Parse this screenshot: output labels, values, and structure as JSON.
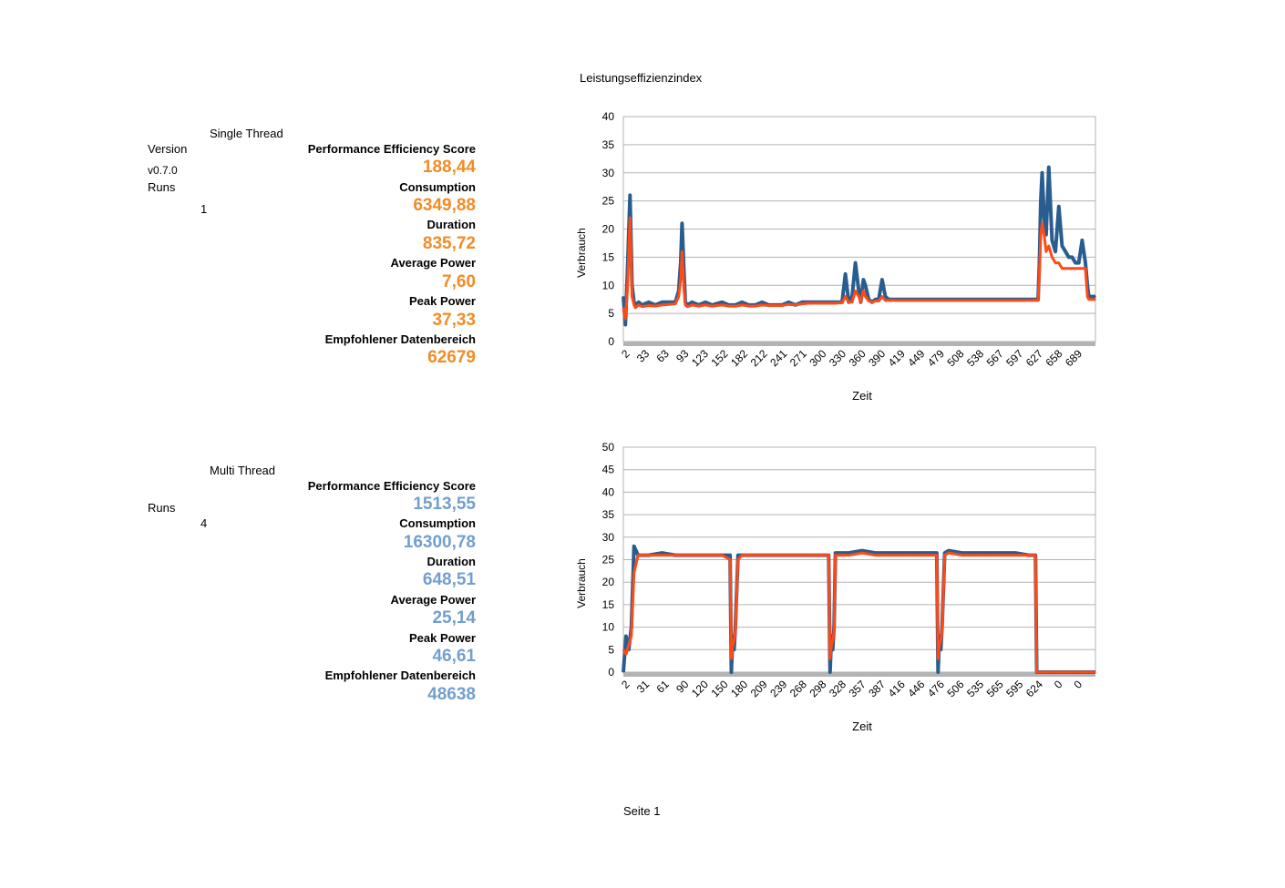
{
  "page_title": "Leistungseffizienzindex",
  "footer": "Seite 1",
  "colors": {
    "single_thread_value": "#f28c25",
    "multi_thread_value": "#729fcf",
    "raw_series": "#2a5d8f",
    "avg_series": "#ff4a16"
  },
  "single": {
    "title": "Single Thread",
    "version_label": "Version",
    "version_value": "v0.7.0",
    "runs_label": "Runs",
    "runs_value": "1",
    "metrics": [
      {
        "label": "Performance Efficiency Score",
        "value": "188,44"
      },
      {
        "label": "Consumption",
        "value": "6349,88"
      },
      {
        "label": "Duration",
        "value": "835,72"
      },
      {
        "label": "Average Power",
        "value": "7,60"
      },
      {
        "label": "Peak Power",
        "value": "37,33"
      },
      {
        "label": "Empfohlener Datenbereich",
        "value": "62679"
      }
    ]
  },
  "multi": {
    "title": "Multi Thread",
    "runs_label": "Runs",
    "runs_value": "4",
    "metrics": [
      {
        "label": "Performance Efficiency Score",
        "value": "1513,55"
      },
      {
        "label": "Consumption",
        "value": "16300,78"
      },
      {
        "label": "Duration",
        "value": "648,51"
      },
      {
        "label": "Average Power",
        "value": "25,14"
      },
      {
        "label": "Peak Power",
        "value": "46,61"
      },
      {
        "label": "Empfohlener Datenbereich",
        "value": "48638"
      }
    ]
  },
  "chart_data": [
    {
      "type": "line",
      "xlabel": "Zeit",
      "ylabel": "Verbrauch",
      "ylim": [
        0,
        40
      ],
      "yticks": [
        0,
        5,
        10,
        15,
        20,
        25,
        30,
        35,
        40
      ],
      "categories": [
        "2",
        "33",
        "63",
        "93",
        "123",
        "152",
        "182",
        "212",
        "241",
        "271",
        "300",
        "330",
        "360",
        "390",
        "419",
        "449",
        "479",
        "508",
        "538",
        "567",
        "597",
        "627",
        "658",
        "689"
      ],
      "x_range": [
        2,
        710
      ],
      "grid": true,
      "series": [
        {
          "x": [
            2,
            5,
            8,
            12,
            15,
            18,
            20,
            25,
            30,
            40,
            50,
            60,
            70,
            80,
            85,
            88,
            90,
            93,
            95,
            98,
            105,
            115,
            125,
            135,
            150,
            160,
            170,
            180,
            190,
            200,
            210,
            220,
            230,
            240,
            250,
            260,
            270,
            280,
            290,
            300,
            310,
            320,
            330,
            335,
            340,
            345,
            350,
            355,
            358,
            362,
            365,
            370,
            375,
            380,
            385,
            390,
            395,
            400,
            420,
            440,
            460,
            480,
            500,
            520,
            540,
            560,
            580,
            600,
            620,
            624,
            626,
            628,
            630,
            633,
            636,
            640,
            645,
            650,
            655,
            660,
            665,
            670,
            675,
            680,
            685,
            690,
            695,
            698,
            700,
            705,
            710
          ],
          "values": [
            8,
            3,
            12,
            26,
            10,
            7,
            6.5,
            7,
            6.5,
            7,
            6.5,
            7,
            7,
            7,
            9,
            14,
            21,
            12,
            7,
            6.5,
            7,
            6.5,
            7,
            6.5,
            7,
            6.5,
            6.5,
            7,
            6.5,
            6.5,
            7,
            6.5,
            6.5,
            6.5,
            7,
            6.5,
            7,
            7,
            7,
            7,
            7,
            7,
            7,
            12,
            7,
            8,
            14,
            9,
            7,
            11,
            10,
            7.5,
            7,
            7.5,
            7.5,
            11,
            8,
            7.5,
            7.5,
            7.5,
            7.5,
            7.5,
            7.5,
            7.5,
            7.5,
            7.5,
            7.5,
            7.5,
            7.5,
            7.5,
            14,
            25,
            30,
            22,
            19,
            31,
            18,
            16,
            24,
            17,
            16,
            15,
            15,
            14,
            14,
            18,
            14,
            10,
            8,
            8,
            8
          ]
        },
        {
          "x": [
            2,
            5,
            8,
            12,
            15,
            18,
            20,
            25,
            30,
            40,
            50,
            60,
            70,
            80,
            85,
            88,
            90,
            93,
            95,
            98,
            105,
            115,
            125,
            135,
            150,
            160,
            170,
            180,
            190,
            200,
            210,
            220,
            230,
            240,
            250,
            260,
            270,
            280,
            290,
            300,
            310,
            320,
            330,
            335,
            340,
            345,
            350,
            355,
            358,
            362,
            365,
            370,
            375,
            380,
            385,
            390,
            395,
            400,
            420,
            440,
            460,
            480,
            500,
            520,
            540,
            560,
            580,
            600,
            620,
            624,
            626,
            628,
            630,
            633,
            636,
            640,
            645,
            650,
            655,
            660,
            665,
            670,
            675,
            680,
            685,
            690,
            695,
            698,
            700,
            705,
            710
          ],
          "values": [
            6,
            4,
            9,
            22,
            8,
            6.5,
            6,
            6.5,
            6.2,
            6.4,
            6.3,
            6.5,
            6.6,
            6.7,
            8,
            11,
            16,
            9,
            6.5,
            6.2,
            6.5,
            6.3,
            6.5,
            6.3,
            6.5,
            6.3,
            6.3,
            6.5,
            6.3,
            6.3,
            6.5,
            6.4,
            6.4,
            6.4,
            6.6,
            6.5,
            6.7,
            6.8,
            6.8,
            6.8,
            6.8,
            6.8,
            6.9,
            8,
            7,
            7,
            9,
            8,
            7,
            9,
            8,
            7.2,
            7,
            7.2,
            7.2,
            8,
            7.3,
            7.3,
            7.3,
            7.3,
            7.3,
            7.3,
            7.3,
            7.3,
            7.3,
            7.3,
            7.3,
            7.3,
            7.3,
            7.3,
            12,
            19,
            21,
            19,
            16,
            17,
            15,
            14,
            14,
            13,
            13,
            13,
            13,
            13,
            13,
            13,
            13,
            8,
            7.5,
            7.5,
            7.5
          ]
        }
      ]
    },
    {
      "type": "line",
      "xlabel": "Zeit",
      "ylabel": "Verbrauch",
      "ylim": [
        0,
        50
      ],
      "yticks": [
        0,
        5,
        10,
        15,
        20,
        25,
        30,
        35,
        40,
        45,
        50
      ],
      "categories": [
        "2",
        "31",
        "61",
        "90",
        "120",
        "150",
        "180",
        "209",
        "239",
        "268",
        "298",
        "328",
        "357",
        "387",
        "416",
        "446",
        "476",
        "506",
        "535",
        "565",
        "595",
        "624",
        "0",
        "0"
      ],
      "x_range": [
        2,
        710
      ],
      "grid": true,
      "series": [
        {
          "x": [
            2,
            6,
            10,
            14,
            18,
            24,
            40,
            60,
            80,
            100,
            120,
            140,
            150,
            162,
            164,
            166,
            168,
            170,
            174,
            180,
            200,
            220,
            240,
            260,
            280,
            300,
            310,
            312,
            314,
            316,
            318,
            320,
            326,
            340,
            360,
            380,
            400,
            420,
            440,
            460,
            472,
            474,
            476,
            478,
            480,
            484,
            490,
            510,
            530,
            550,
            570,
            590,
            610,
            620,
            622,
            624,
            650,
            680,
            710
          ],
          "values": [
            0,
            8,
            5,
            10,
            28,
            26,
            26,
            26.5,
            26,
            26,
            26,
            26,
            26,
            26,
            0,
            8,
            5,
            10,
            26,
            26,
            26,
            26,
            26,
            26,
            26,
            26,
            26,
            0,
            8,
            5,
            10,
            26.5,
            26.5,
            26.5,
            27,
            26.5,
            26.5,
            26.5,
            26.5,
            26.5,
            26.5,
            0,
            8,
            5,
            10,
            26.5,
            27,
            26.5,
            26.5,
            26.5,
            26.5,
            26.5,
            26,
            26,
            0,
            0,
            0,
            0,
            0
          ]
        },
        {
          "x": [
            2,
            6,
            10,
            14,
            18,
            24,
            40,
            60,
            80,
            100,
            120,
            140,
            150,
            162,
            164,
            166,
            168,
            170,
            174,
            180,
            200,
            220,
            240,
            260,
            280,
            300,
            310,
            312,
            314,
            316,
            318,
            320,
            326,
            340,
            360,
            380,
            400,
            420,
            440,
            460,
            472,
            474,
            476,
            478,
            480,
            484,
            490,
            510,
            530,
            550,
            570,
            590,
            610,
            620,
            622,
            624,
            650,
            680,
            710
          ],
          "values": [
            5,
            4,
            6,
            8,
            22,
            26,
            26,
            26,
            26,
            26,
            26,
            26,
            26,
            25,
            3,
            6,
            7,
            9,
            25,
            26,
            26,
            26,
            26,
            26,
            26,
            26,
            26,
            3,
            6,
            7,
            9,
            26,
            26,
            26,
            26.5,
            26,
            26,
            26,
            26,
            26,
            26,
            3,
            6,
            7,
            9,
            26,
            26.5,
            26,
            26,
            26,
            26,
            26,
            26,
            26,
            0,
            0,
            0,
            0,
            0
          ]
        }
      ]
    }
  ]
}
